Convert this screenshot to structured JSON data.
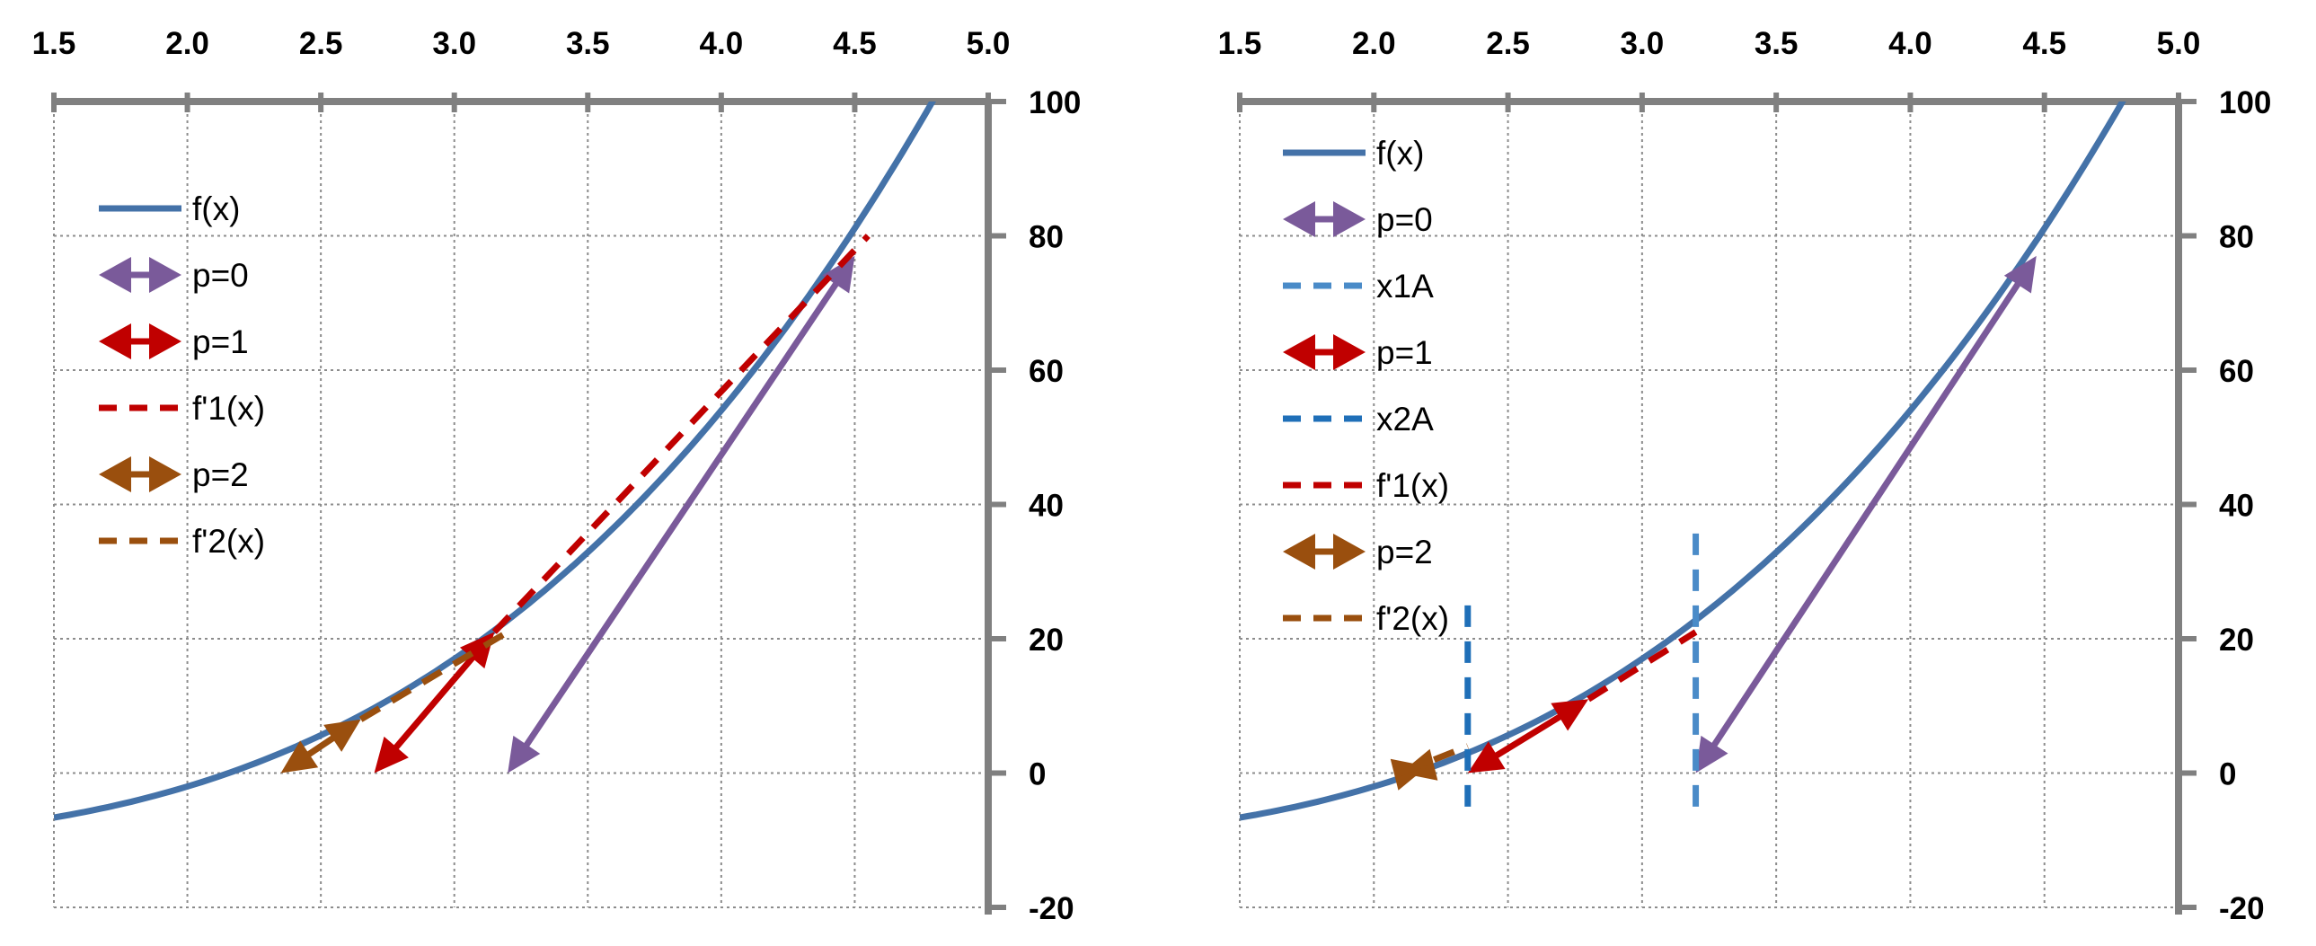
{
  "colors": {
    "axis": "#808080",
    "grid": "#8c8c8c",
    "fx": "#4472a8",
    "p0": "#7a5a9a",
    "p1": "#c00000",
    "p2": "#9a4f0e",
    "vline": "#1f6fb8",
    "vline_light": "#4a8bc8"
  },
  "chart_data": [
    {
      "type": "line",
      "title": "",
      "x_ticks": [
        "1.5",
        "2.0",
        "2.5",
        "3.0",
        "3.5",
        "4.0",
        "4.5",
        "5.0"
      ],
      "y_ticks": [
        "100",
        "80",
        "60",
        "40",
        "20",
        "0",
        "-20"
      ],
      "xlim": [
        1.5,
        5.0
      ],
      "ylim": [
        -20,
        100
      ],
      "x_axis_position": "top",
      "y_axis_position": "right",
      "grid": true,
      "legend": [
        "f(x)",
        "p=0",
        "p=1",
        "f'1(x)",
        "p=2",
        "f'2(x)"
      ],
      "series": [
        {
          "name": "f(x)",
          "style": "curve",
          "function": "x^3 - 10",
          "x": [
            1.5,
            1.75,
            2.0,
            2.25,
            2.5,
            2.75,
            3.0,
            3.25,
            3.5,
            3.75,
            4.0,
            4.25,
            4.5,
            4.6416
          ],
          "values": [
            -6.63,
            -4.64,
            -2.0,
            1.39,
            5.63,
            10.8,
            17.0,
            24.33,
            32.88,
            42.73,
            54.0,
            66.77,
            81.13,
            90.0
          ]
        },
        {
          "name": "p=0",
          "style": "arrow",
          "x": [
            4.5,
            3.2
          ],
          "values": [
            77,
            0
          ]
        },
        {
          "name": "p=1",
          "style": "arrow",
          "x": [
            3.15,
            2.7
          ],
          "values": [
            21,
            0
          ]
        },
        {
          "name": "f'1(x)",
          "style": "dash",
          "x": [
            3.15,
            4.55
          ],
          "values": [
            21,
            80
          ]
        },
        {
          "name": "p=2",
          "style": "arrow",
          "x": [
            2.65,
            2.35
          ],
          "values": [
            8,
            0
          ]
        },
        {
          "name": "f'2(x)",
          "style": "dash",
          "x": [
            2.65,
            3.2
          ],
          "values": [
            8,
            21
          ]
        }
      ]
    },
    {
      "type": "line",
      "title": "",
      "x_ticks": [
        "1.5",
        "2.0",
        "2.5",
        "3.0",
        "3.5",
        "4.0",
        "4.5",
        "5.0"
      ],
      "y_ticks": [
        "100",
        "80",
        "60",
        "40",
        "20",
        "0",
        "-20"
      ],
      "xlim": [
        1.5,
        5.0
      ],
      "ylim": [
        -20,
        100
      ],
      "x_axis_position": "top",
      "y_axis_position": "right",
      "grid": true,
      "legend": [
        "f(x)",
        "p=0",
        "x1A",
        "p=1",
        "x2A",
        "f'1(x)",
        "p=2",
        "f'2(x)"
      ],
      "series": [
        {
          "name": "f(x)",
          "style": "curve",
          "function": "x^3 - 10",
          "x": [
            1.5,
            1.75,
            2.0,
            2.25,
            2.5,
            2.75,
            3.0,
            3.25,
            3.5,
            3.75,
            4.0,
            4.25,
            4.5,
            4.6416
          ],
          "values": [
            -6.63,
            -4.64,
            -2.0,
            1.39,
            5.63,
            10.8,
            17.0,
            24.33,
            32.88,
            42.73,
            54.0,
            66.77,
            81.13,
            90.0
          ]
        },
        {
          "name": "p=0",
          "style": "arrow",
          "x": [
            4.47,
            3.2
          ],
          "values": [
            77,
            0
          ]
        },
        {
          "name": "x1A",
          "style": "vline",
          "x": [
            3.2,
            3.2
          ],
          "values": [
            -5,
            36
          ]
        },
        {
          "name": "p=1",
          "style": "arrow",
          "x": [
            2.8,
            2.35
          ],
          "values": [
            11,
            0
          ]
        },
        {
          "name": "x2A",
          "style": "vline",
          "x": [
            2.35,
            2.35
          ],
          "values": [
            -5,
            25
          ]
        },
        {
          "name": "f'1(x)",
          "style": "dash",
          "x": [
            2.8,
            3.2
          ],
          "values": [
            11,
            21
          ]
        },
        {
          "name": "p=2",
          "style": "arrow",
          "x": [
            2.2,
            2.1
          ],
          "values": [
            1,
            0
          ]
        },
        {
          "name": "f'2(x)",
          "style": "dash",
          "x": [
            2.1,
            2.35
          ],
          "values": [
            0,
            4
          ]
        }
      ]
    }
  ]
}
